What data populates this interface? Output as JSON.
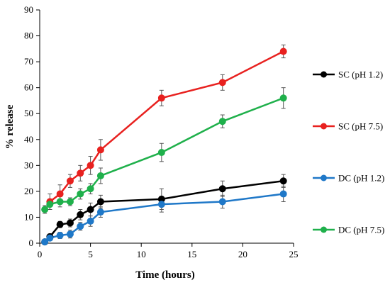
{
  "chart_data": {
    "type": "line",
    "title": "",
    "xlabel": "Time (hours)",
    "ylabel": "% release",
    "xlim": [
      0,
      25
    ],
    "ylim": [
      0,
      90
    ],
    "xticks": [
      0,
      5,
      10,
      15,
      20,
      25
    ],
    "yticks": [
      0,
      10,
      20,
      30,
      40,
      50,
      60,
      70,
      80,
      90
    ],
    "grid": false,
    "legend_position": "right",
    "series": [
      {
        "name": "SC (pH 1.2)",
        "color": "#000000",
        "x": [
          0.5,
          1,
          2,
          3,
          4,
          5,
          6,
          12,
          18,
          24
        ],
        "y": [
          0.5,
          2.5,
          7.2,
          7.8,
          11,
          13,
          16,
          17,
          21,
          24
        ],
        "err": [
          0.5,
          1.0,
          1.2,
          1.5,
          2.0,
          2.5,
          2.5,
          4.0,
          3.0,
          2.5
        ]
      },
      {
        "name": "SC (pH 7.5)",
        "color": "#e8211f",
        "x": [
          1,
          2,
          3,
          4,
          5,
          6,
          12,
          18,
          24
        ],
        "y": [
          16,
          19,
          24,
          27,
          30,
          36,
          56,
          62,
          74
        ],
        "err": [
          3.0,
          3.5,
          2.5,
          3.0,
          3.5,
          4.0,
          3.0,
          3.0,
          2.5
        ]
      },
      {
        "name": "DC (pH 1.2)",
        "color": "#1f78c8",
        "x": [
          0.5,
          1,
          2,
          3,
          4,
          5,
          6,
          12,
          18,
          24
        ],
        "y": [
          0.5,
          2.0,
          3.0,
          3.5,
          6.5,
          8.5,
          12,
          15,
          16,
          19
        ],
        "err": [
          0.5,
          1.0,
          1.2,
          1.5,
          1.5,
          2.0,
          2.0,
          3.0,
          2.5,
          3.0
        ]
      },
      {
        "name": "DC (pH 7.5)",
        "color": "#1fb04b",
        "x": [
          0.5,
          1,
          2,
          3,
          4,
          5,
          6,
          12,
          18,
          24
        ],
        "y": [
          13,
          15,
          16,
          16,
          19,
          21,
          26,
          35,
          47,
          56
        ],
        "err": [
          1.5,
          2.0,
          2.0,
          1.5,
          2.0,
          2.0,
          3.0,
          3.5,
          2.5,
          4.0
        ]
      }
    ]
  }
}
